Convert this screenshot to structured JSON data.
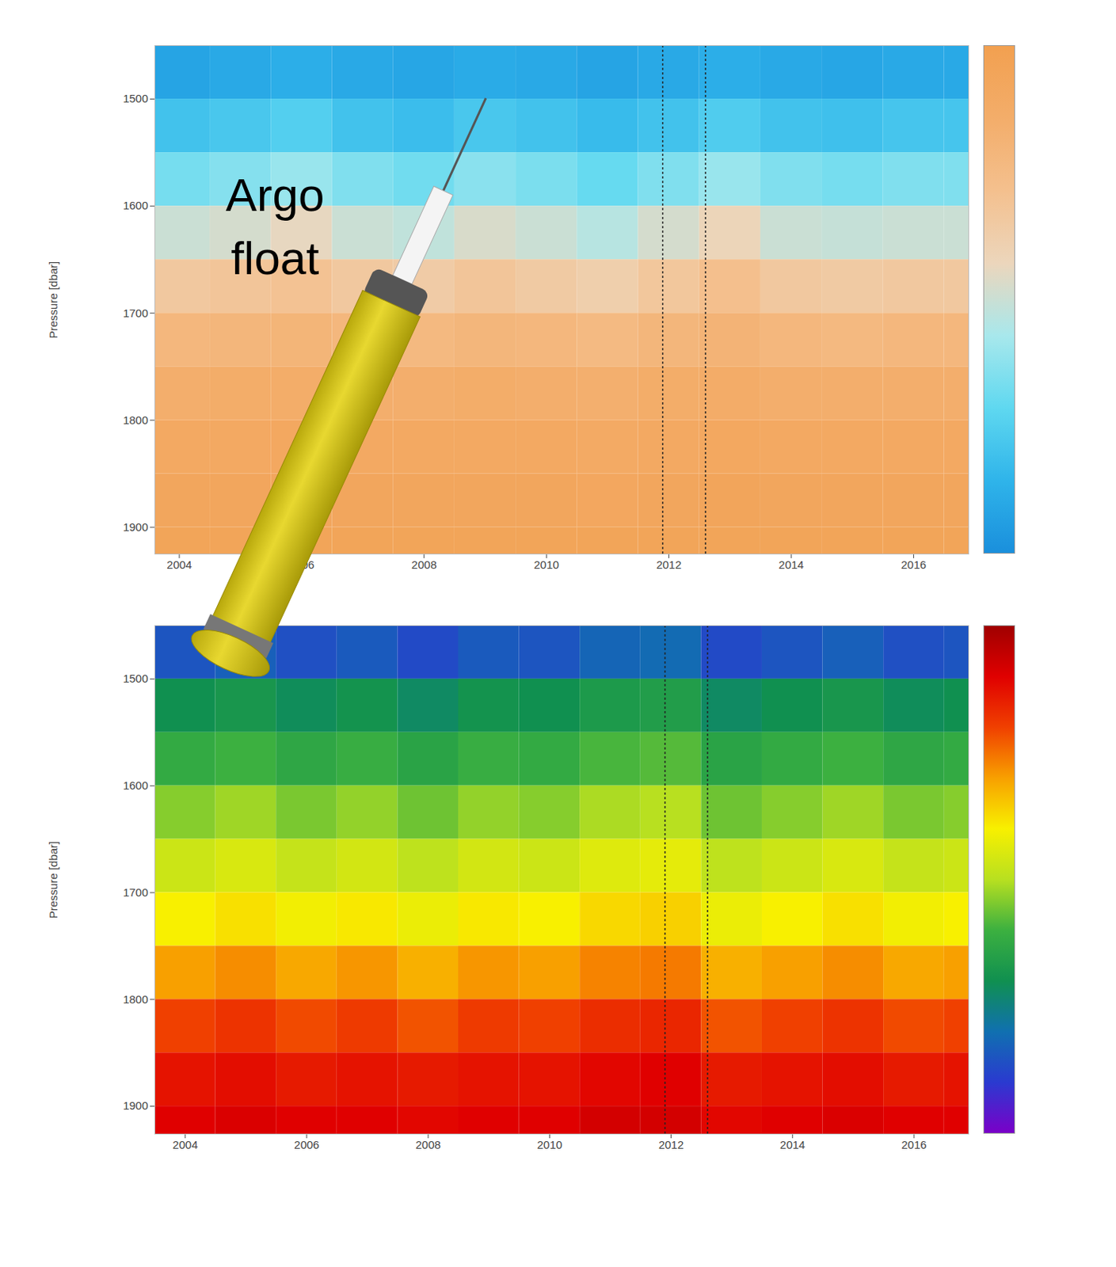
{
  "chart_data": [
    {
      "type": "heatmap",
      "y_label": "Pressure [dbar]",
      "annotations": [
        {
          "text": "Argo float"
        }
      ],
      "x": [
        2004,
        2005,
        2006,
        2007,
        2008,
        2009,
        2010,
        2011,
        2012,
        2013,
        2014,
        2015,
        2016,
        2017
      ],
      "y": [
        1475,
        1525,
        1575,
        1625,
        1675,
        1725,
        1775,
        1825,
        1875,
        1925
      ],
      "values": [
        [
          0.08,
          0.1,
          0.12,
          0.1,
          0.09,
          0.11,
          0.1,
          0.08,
          0.1,
          0.12,
          0.1,
          0.09,
          0.1,
          0.1
        ],
        [
          0.2,
          0.22,
          0.25,
          0.2,
          0.18,
          0.22,
          0.2,
          0.17,
          0.2,
          0.24,
          0.2,
          0.19,
          0.21,
          0.21
        ],
        [
          0.33,
          0.36,
          0.4,
          0.35,
          0.32,
          0.37,
          0.34,
          0.3,
          0.35,
          0.4,
          0.35,
          0.33,
          0.35,
          0.35
        ],
        [
          0.5,
          0.52,
          0.56,
          0.5,
          0.48,
          0.53,
          0.5,
          0.46,
          0.52,
          0.58,
          0.5,
          0.49,
          0.5,
          0.5
        ],
        [
          0.66,
          0.68,
          0.7,
          0.66,
          0.64,
          0.68,
          0.65,
          0.62,
          0.67,
          0.72,
          0.66,
          0.65,
          0.66,
          0.66
        ],
        [
          0.78,
          0.79,
          0.8,
          0.78,
          0.77,
          0.79,
          0.78,
          0.76,
          0.79,
          0.81,
          0.78,
          0.77,
          0.78,
          0.78
        ],
        [
          0.85,
          0.86,
          0.86,
          0.85,
          0.85,
          0.86,
          0.85,
          0.84,
          0.86,
          0.87,
          0.85,
          0.85,
          0.85,
          0.85
        ],
        [
          0.9,
          0.9,
          0.91,
          0.9,
          0.9,
          0.9,
          0.9,
          0.89,
          0.9,
          0.91,
          0.9,
          0.9,
          0.9,
          0.9
        ],
        [
          0.93,
          0.93,
          0.93,
          0.93,
          0.93,
          0.93,
          0.93,
          0.92,
          0.93,
          0.94,
          0.93,
          0.93,
          0.93,
          0.93
        ],
        [
          0.95,
          0.95,
          0.95,
          0.95,
          0.95,
          0.95,
          0.95,
          0.95,
          0.95,
          0.95,
          0.95,
          0.95,
          0.95,
          0.95
        ]
      ],
      "color_range": [
        0,
        1
      ],
      "colors": [
        "#1a8fdc",
        "#2fb4ea",
        "#5fd8f0",
        "#a8e8ec",
        "#ecd6bc",
        "#f4c08e",
        "#f3ad6a",
        "#f2a050"
      ],
      "vlines": [
        2011.9,
        2012.6
      ],
      "xlim": [
        2003.6,
        2016.9
      ],
      "ylim": [
        1450,
        1925
      ],
      "xticks": [
        2004,
        2006,
        2008,
        2010,
        2012,
        2014,
        2016
      ],
      "yticks": [
        1500,
        1600,
        1700,
        1800,
        1900
      ]
    },
    {
      "type": "heatmap",
      "y_label": "Pressure [dbar]",
      "x": [
        2004,
        2005,
        2006,
        2007,
        2008,
        2009,
        2010,
        2011,
        2012,
        2013,
        2014,
        2015,
        2016,
        2017
      ],
      "y": [
        1475,
        1525,
        1575,
        1625,
        1675,
        1725,
        1775,
        1825,
        1875,
        1925
      ],
      "values": [
        [
          0.15,
          0.17,
          0.14,
          0.16,
          0.13,
          0.16,
          0.15,
          0.18,
          0.19,
          0.13,
          0.15,
          0.17,
          0.14,
          0.15
        ],
        [
          0.3,
          0.32,
          0.29,
          0.31,
          0.28,
          0.31,
          0.3,
          0.33,
          0.34,
          0.28,
          0.3,
          0.32,
          0.29,
          0.3
        ],
        [
          0.38,
          0.4,
          0.37,
          0.39,
          0.36,
          0.39,
          0.38,
          0.41,
          0.42,
          0.36,
          0.38,
          0.4,
          0.37,
          0.38
        ],
        [
          0.46,
          0.48,
          0.45,
          0.47,
          0.44,
          0.47,
          0.46,
          0.49,
          0.5,
          0.44,
          0.46,
          0.48,
          0.45,
          0.46
        ],
        [
          0.53,
          0.55,
          0.52,
          0.54,
          0.51,
          0.54,
          0.53,
          0.56,
          0.57,
          0.51,
          0.53,
          0.55,
          0.52,
          0.53
        ],
        [
          0.6,
          0.62,
          0.59,
          0.61,
          0.58,
          0.61,
          0.6,
          0.63,
          0.64,
          0.58,
          0.6,
          0.62,
          0.59,
          0.6
        ],
        [
          0.7,
          0.72,
          0.69,
          0.71,
          0.68,
          0.71,
          0.7,
          0.73,
          0.74,
          0.68,
          0.7,
          0.72,
          0.69,
          0.7
        ],
        [
          0.8,
          0.82,
          0.79,
          0.81,
          0.78,
          0.81,
          0.8,
          0.83,
          0.84,
          0.78,
          0.8,
          0.82,
          0.79,
          0.8
        ],
        [
          0.87,
          0.88,
          0.86,
          0.87,
          0.86,
          0.87,
          0.87,
          0.89,
          0.9,
          0.86,
          0.87,
          0.88,
          0.86,
          0.87
        ],
        [
          0.9,
          0.91,
          0.9,
          0.9,
          0.89,
          0.9,
          0.9,
          0.92,
          0.92,
          0.89,
          0.9,
          0.91,
          0.9,
          0.9
        ]
      ],
      "color_range": [
        0,
        1
      ],
      "colors": [
        "#7a00c8",
        "#2a3ad0",
        "#1070b0",
        "#109050",
        "#3cb040",
        "#b8e020",
        "#f8f000",
        "#f8a000",
        "#f04000",
        "#e00000",
        "#a00000"
      ],
      "vlines": [
        2011.9,
        2012.6
      ],
      "xlim": [
        2003.5,
        2016.9
      ],
      "ylim": [
        1450,
        1926
      ],
      "xticks": [
        2004,
        2006,
        2008,
        2010,
        2012,
        2014,
        2016
      ],
      "yticks": [
        1500,
        1600,
        1700,
        1800,
        1900
      ]
    }
  ]
}
